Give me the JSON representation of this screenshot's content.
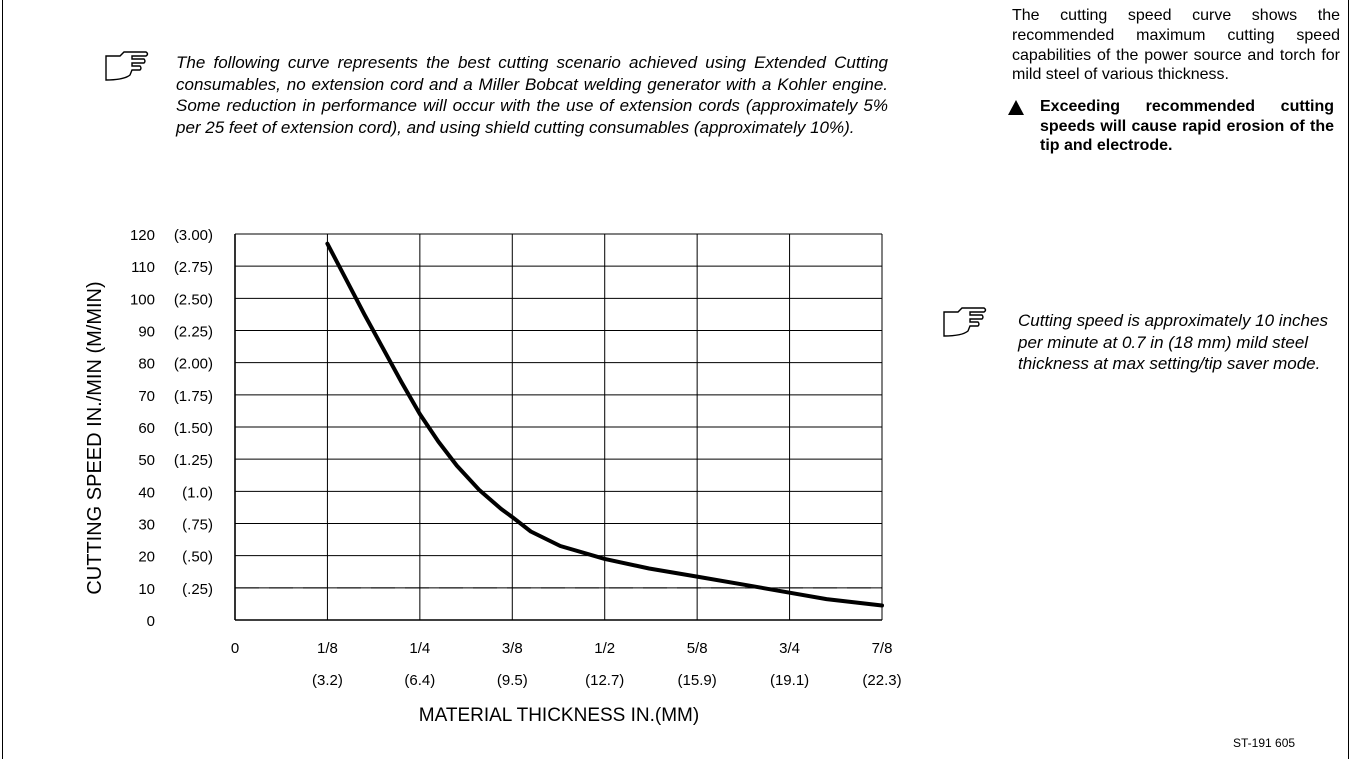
{
  "top_note": "The following curve represents the best cutting scenario achieved using Extended Cutting consumables, no extension cord and a Miller Bobcat welding generator with a Kohler engine. Some reduction in performance will occur with the use of extension cords (approximately 5% per 25 feet of extension cord), and using shield cutting consumables (approximately 10%).",
  "intro_text": "The cutting speed curve shows the recommended maximum cutting speed capabilities of the power source and torch for mild steel of various thickness.",
  "warning_text": "Exceeding recommended cutting speeds will cause rapid erosion of the tip and electrode.",
  "right_note": "Cutting speed is approximately 10 inches per minute at 0.7 in (18 mm) mild steel thickness at max setting/tip saver mode.",
  "footer_code": "ST-191 605",
  "icons": {
    "note": "pointing-hand-icon",
    "warning": "warning-triangle-icon"
  },
  "chart_data": {
    "type": "line",
    "xlabel": "MATERIAL THICKNESS IN.(MM)",
    "ylabel": "CUTTING SPEED IN./MIN (M/MIN)",
    "xlim": [
      0,
      0.875
    ],
    "ylim": [
      0,
      120
    ],
    "x_ticks": [
      {
        "value": 0,
        "label": "0",
        "sub": ""
      },
      {
        "value": 0.125,
        "label": "1/8",
        "sub": "(3.2)"
      },
      {
        "value": 0.25,
        "label": "1/4",
        "sub": "(6.4)"
      },
      {
        "value": 0.375,
        "label": "3/8",
        "sub": "(9.5)"
      },
      {
        "value": 0.5,
        "label": "1/2",
        "sub": "(12.7)"
      },
      {
        "value": 0.625,
        "label": "5/8",
        "sub": "(15.9)"
      },
      {
        "value": 0.75,
        "label": "3/4",
        "sub": "(19.1)"
      },
      {
        "value": 0.875,
        "label": "7/8",
        "sub": "(22.3)"
      }
    ],
    "y_ticks": [
      {
        "value": 0,
        "label": "0",
        "sub": ""
      },
      {
        "value": 10,
        "label": "10",
        "sub": "(.25)"
      },
      {
        "value": 20,
        "label": "20",
        "sub": "(.50)"
      },
      {
        "value": 30,
        "label": "30",
        "sub": "(.75)"
      },
      {
        "value": 40,
        "label": "40",
        "sub": "(1.0)"
      },
      {
        "value": 50,
        "label": "50",
        "sub": "(1.25)"
      },
      {
        "value": 60,
        "label": "60",
        "sub": "(1.50)"
      },
      {
        "value": 70,
        "label": "70",
        "sub": "(1.75)"
      },
      {
        "value": 80,
        "label": "80",
        "sub": "(2.00)"
      },
      {
        "value": 90,
        "label": "90",
        "sub": "(2.25)"
      },
      {
        "value": 100,
        "label": "100",
        "sub": "(2.50)"
      },
      {
        "value": 110,
        "label": "110",
        "sub": "(2.75)"
      },
      {
        "value": 120,
        "label": "120",
        "sub": "(3.00)"
      }
    ],
    "grid": true,
    "reference_line": {
      "y": 10,
      "style": "dashed"
    },
    "series": [
      {
        "x": [
          0.125,
          0.15,
          0.175,
          0.2,
          0.225,
          0.25,
          0.275,
          0.3,
          0.33,
          0.36,
          0.375,
          0.4,
          0.44,
          0.5,
          0.56,
          0.625,
          0.7,
          0.75,
          0.8,
          0.875
        ],
        "y": [
          117,
          106,
          95,
          84.5,
          74,
          64,
          55.5,
          48,
          40.5,
          34.5,
          32,
          27.5,
          23,
          19,
          16,
          13.5,
          10.5,
          8.5,
          6.5,
          4.5
        ]
      }
    ]
  }
}
